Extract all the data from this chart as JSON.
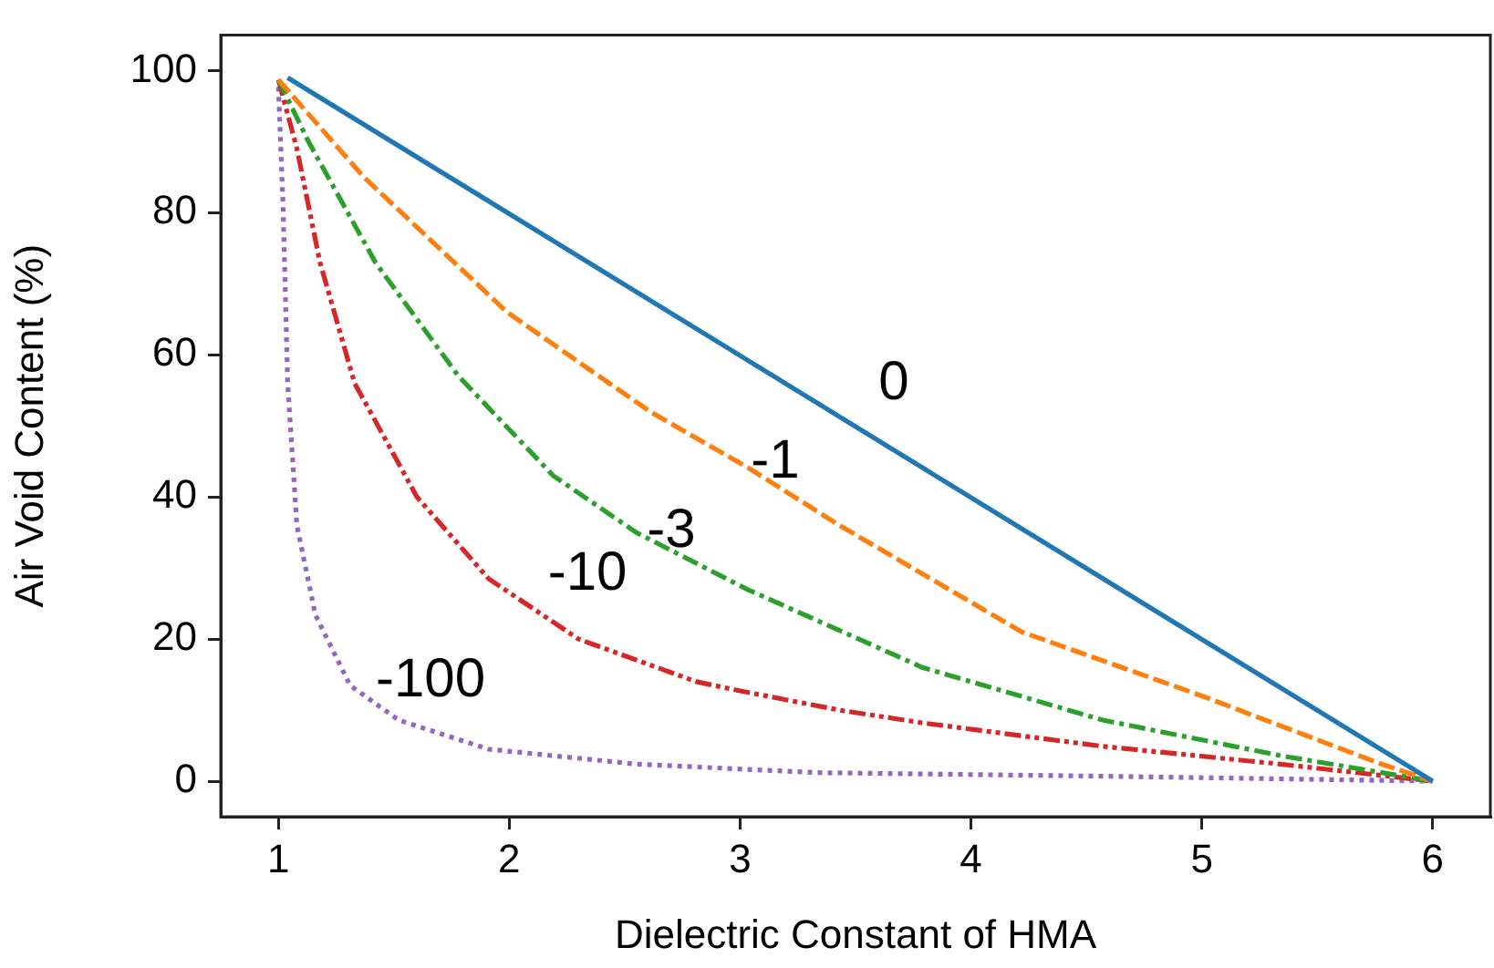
{
  "chart_data": {
    "type": "line",
    "xlabel": "Dielectric Constant of HMA",
    "ylabel": "Air Void Content (%)",
    "xlim": [
      0.75,
      6.25
    ],
    "ylim": [
      -5,
      105
    ],
    "xticks": [
      1,
      2,
      3,
      4,
      5,
      6
    ],
    "yticks": [
      0,
      20,
      40,
      60,
      80,
      100
    ],
    "grid": false,
    "legend": false,
    "marker": "none",
    "series": [
      {
        "name": "0",
        "color": "#1f77b4",
        "line_style": "solid",
        "x": [
          1.04,
          6
        ],
        "values": [
          99,
          0
        ]
      },
      {
        "name": "-1",
        "color": "#ff7f0e",
        "line_style": "dashed",
        "x": [
          1,
          1.37,
          1.99,
          2.61,
          3.04,
          3.43,
          4.22,
          5,
          5.77,
          6
        ],
        "values": [
          98.7,
          85,
          66,
          52,
          44,
          36,
          21,
          12,
          2.5,
          0
        ]
      },
      {
        "name": "-3",
        "color": "#2ca02c",
        "line_style": "dashdot",
        "x": [
          1,
          1.13,
          1.42,
          1.78,
          2.19,
          2.55,
          3.03,
          3.79,
          4.57,
          5.34,
          6
        ],
        "values": [
          98.7,
          90,
          73,
          57,
          43,
          35,
          27,
          16,
          8.6,
          3.6,
          0
        ]
      },
      {
        "name": "-10",
        "color": "#d62728",
        "line_style": "dashdotdot",
        "x": [
          1,
          1.08,
          1.18,
          1.33,
          1.6,
          1.91,
          2.3,
          2.81,
          3,
          3.43,
          3.79,
          4.57,
          5.34,
          6
        ],
        "values": [
          98.7,
          89,
          73,
          56,
          40,
          28.5,
          20,
          14,
          12.7,
          10,
          8.2,
          4.9,
          2.4,
          0
        ]
      },
      {
        "name": "-100",
        "color": "#9467bd",
        "line_style": "dotted",
        "x": [
          1,
          1.02,
          1.04,
          1.08,
          1.16,
          1.31,
          1.52,
          1.91,
          2.55,
          3.33,
          4.57,
          6
        ],
        "values": [
          97.7,
          81,
          56,
          36,
          23.4,
          13.5,
          8.6,
          4.5,
          2.4,
          1.2,
          0.7,
          0
        ]
      }
    ]
  }
}
